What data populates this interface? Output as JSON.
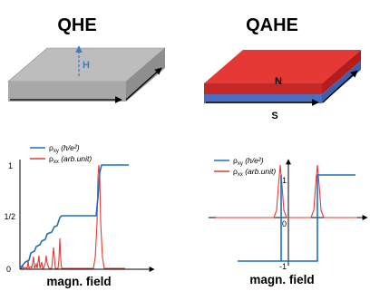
{
  "colors": {
    "slab_top_qhe": "#bdbdbd",
    "slab_side_qhe": "#9a9a9a",
    "slab_top_qahe": "#e53935",
    "slab_side_red": "#c62828",
    "slab_side_blue": "#4a6fc2",
    "field_arrow": "#3a7fc1",
    "rho_xy": "#1f6fbf",
    "rho_xx": "#e53935"
  },
  "qhe": {
    "title": "QHE",
    "field_label": "H",
    "xlabel": "magn. field",
    "ticks": {
      "one": "1",
      "half": "1/2",
      "zero": "0"
    },
    "legend": [
      {
        "name": "ρ",
        "sub": "xy",
        "note": "(h/e²)",
        "color_key": "rho_xy"
      },
      {
        "name": "ρ",
        "sub": "xx",
        "note": "(arb.unit)",
        "color_key": "rho_xx"
      }
    ]
  },
  "qahe": {
    "title": "QAHE",
    "pole_top": "N",
    "pole_bottom": "S",
    "xlabel": "magn. field",
    "ticks": {
      "one": "1",
      "zero": "0",
      "minus_one": "-1"
    },
    "legend": [
      {
        "name": "ρ",
        "sub": "xy",
        "note": "(h/e²)",
        "color_key": "rho_xy"
      },
      {
        "name": "ρ",
        "sub": "xx",
        "note": "(arb.unit)",
        "color_key": "rho_xx"
      }
    ]
  }
}
